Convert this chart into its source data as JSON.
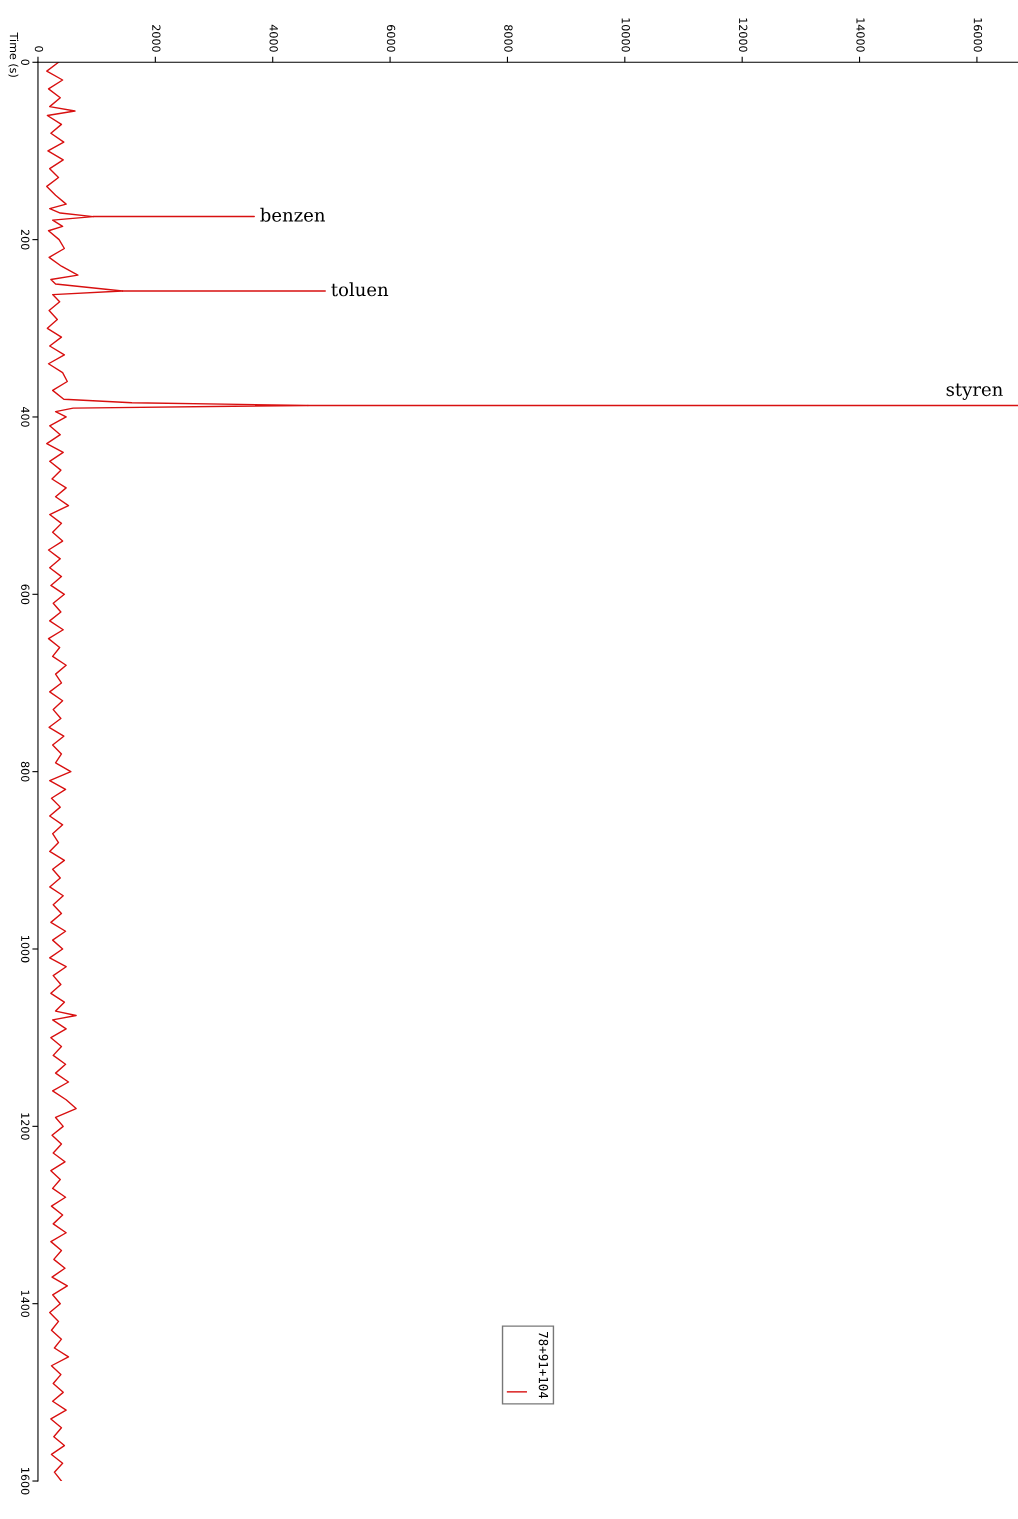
{
  "chart_data": {
    "type": "line",
    "ylabel": "Time (s)",
    "xlim": [
      0,
      16700
    ],
    "xticks": [
      0,
      2000,
      4000,
      6000,
      8000,
      10000,
      12000,
      14000,
      16000
    ],
    "ylim": [
      1600,
      0
    ],
    "yticks": [
      0,
      200,
      400,
      600,
      800,
      1000,
      1200,
      1400,
      1600
    ],
    "legend": "bottom",
    "grid": false,
    "marker": "none",
    "line_style": "solid",
    "annotations": [
      {
        "text": "benzen",
        "x": 940,
        "y": 174
      },
      {
        "text": "toluen",
        "x": 1440,
        "y": 258
      },
      {
        "text": "styren",
        "x": 4600,
        "y": 387
      }
    ],
    "series": [
      {
        "name": "78+91+104",
        "color": "#d81010",
        "x": [
          350,
          150,
          420,
          180,
          380,
          200,
          630,
          160,
          400,
          220,
          440,
          170,
          430,
          200,
          350,
          150,
          300,
          480,
          200,
          380,
          940,
          250,
          420,
          180,
          360,
          450,
          190,
          400,
          680,
          220,
          300,
          1440,
          250,
          370,
          190,
          330,
          160,
          400,
          200,
          450,
          180,
          420,
          500,
          250,
          440,
          1600,
          4600,
          600,
          300,
          480,
          200,
          380,
          150,
          430,
          200,
          390,
          240,
          480,
          300,
          520,
          200,
          400,
          250,
          420,
          180,
          380,
          200,
          400,
          220,
          450,
          260,
          390,
          200,
          430,
          180,
          370,
          250,
          480,
          300,
          400,
          200,
          420,
          260,
          390,
          190,
          440,
          250,
          400,
          300,
          560,
          200,
          470,
          230,
          380,
          200,
          420,
          250,
          350,
          200,
          450,
          250,
          380,
          200,
          430,
          260,
          400,
          220,
          470,
          250,
          420,
          200,
          480,
          260,
          390,
          220,
          450,
          300,
          650,
          250,
          480,
          220,
          400,
          260,
          470,
          300,
          520,
          250,
          480,
          650,
          300,
          430,
          240,
          400,
          260,
          460,
          220,
          380,
          250,
          470,
          230,
          420,
          260,
          480,
          220,
          400,
          270,
          460,
          240,
          500,
          250,
          380,
          200,
          350,
          230,
          400,
          280,
          520,
          230,
          390,
          260,
          430,
          250,
          480,
          220,
          400,
          270,
          450,
          230,
          420,
          280,
          400
        ],
        "values": [
          0,
          10,
          20,
          30,
          40,
          50,
          55,
          60,
          70,
          80,
          90,
          100,
          110,
          120,
          130,
          140,
          150,
          160,
          165,
          170,
          174,
          178,
          185,
          190,
          200,
          210,
          220,
          230,
          240,
          245,
          250,
          258,
          262,
          270,
          280,
          290,
          300,
          310,
          320,
          330,
          340,
          350,
          360,
          370,
          380,
          384,
          387,
          390,
          394,
          400,
          410,
          420,
          430,
          440,
          450,
          460,
          470,
          480,
          490,
          500,
          510,
          520,
          530,
          540,
          550,
          560,
          570,
          580,
          590,
          600,
          610,
          620,
          630,
          640,
          650,
          660,
          670,
          680,
          690,
          700,
          710,
          720,
          730,
          740,
          750,
          760,
          770,
          780,
          790,
          800,
          810,
          820,
          830,
          840,
          850,
          860,
          870,
          880,
          890,
          900,
          910,
          920,
          930,
          940,
          950,
          960,
          970,
          980,
          990,
          1000,
          1010,
          1020,
          1030,
          1040,
          1050,
          1060,
          1070,
          1075,
          1080,
          1090,
          1100,
          1110,
          1120,
          1130,
          1140,
          1150,
          1160,
          1170,
          1180,
          1190,
          1200,
          1210,
          1220,
          1230,
          1240,
          1250,
          1260,
          1270,
          1280,
          1290,
          1300,
          1310,
          1320,
          1330,
          1340,
          1350,
          1360,
          1370,
          1380,
          1390,
          1400,
          1410,
          1420,
          1430,
          1440,
          1450,
          1460,
          1470,
          1480,
          1490,
          1500,
          1510,
          1520,
          1530,
          1540,
          1550,
          1560,
          1570,
          1580,
          1590,
          1600
        ]
      }
    ]
  }
}
